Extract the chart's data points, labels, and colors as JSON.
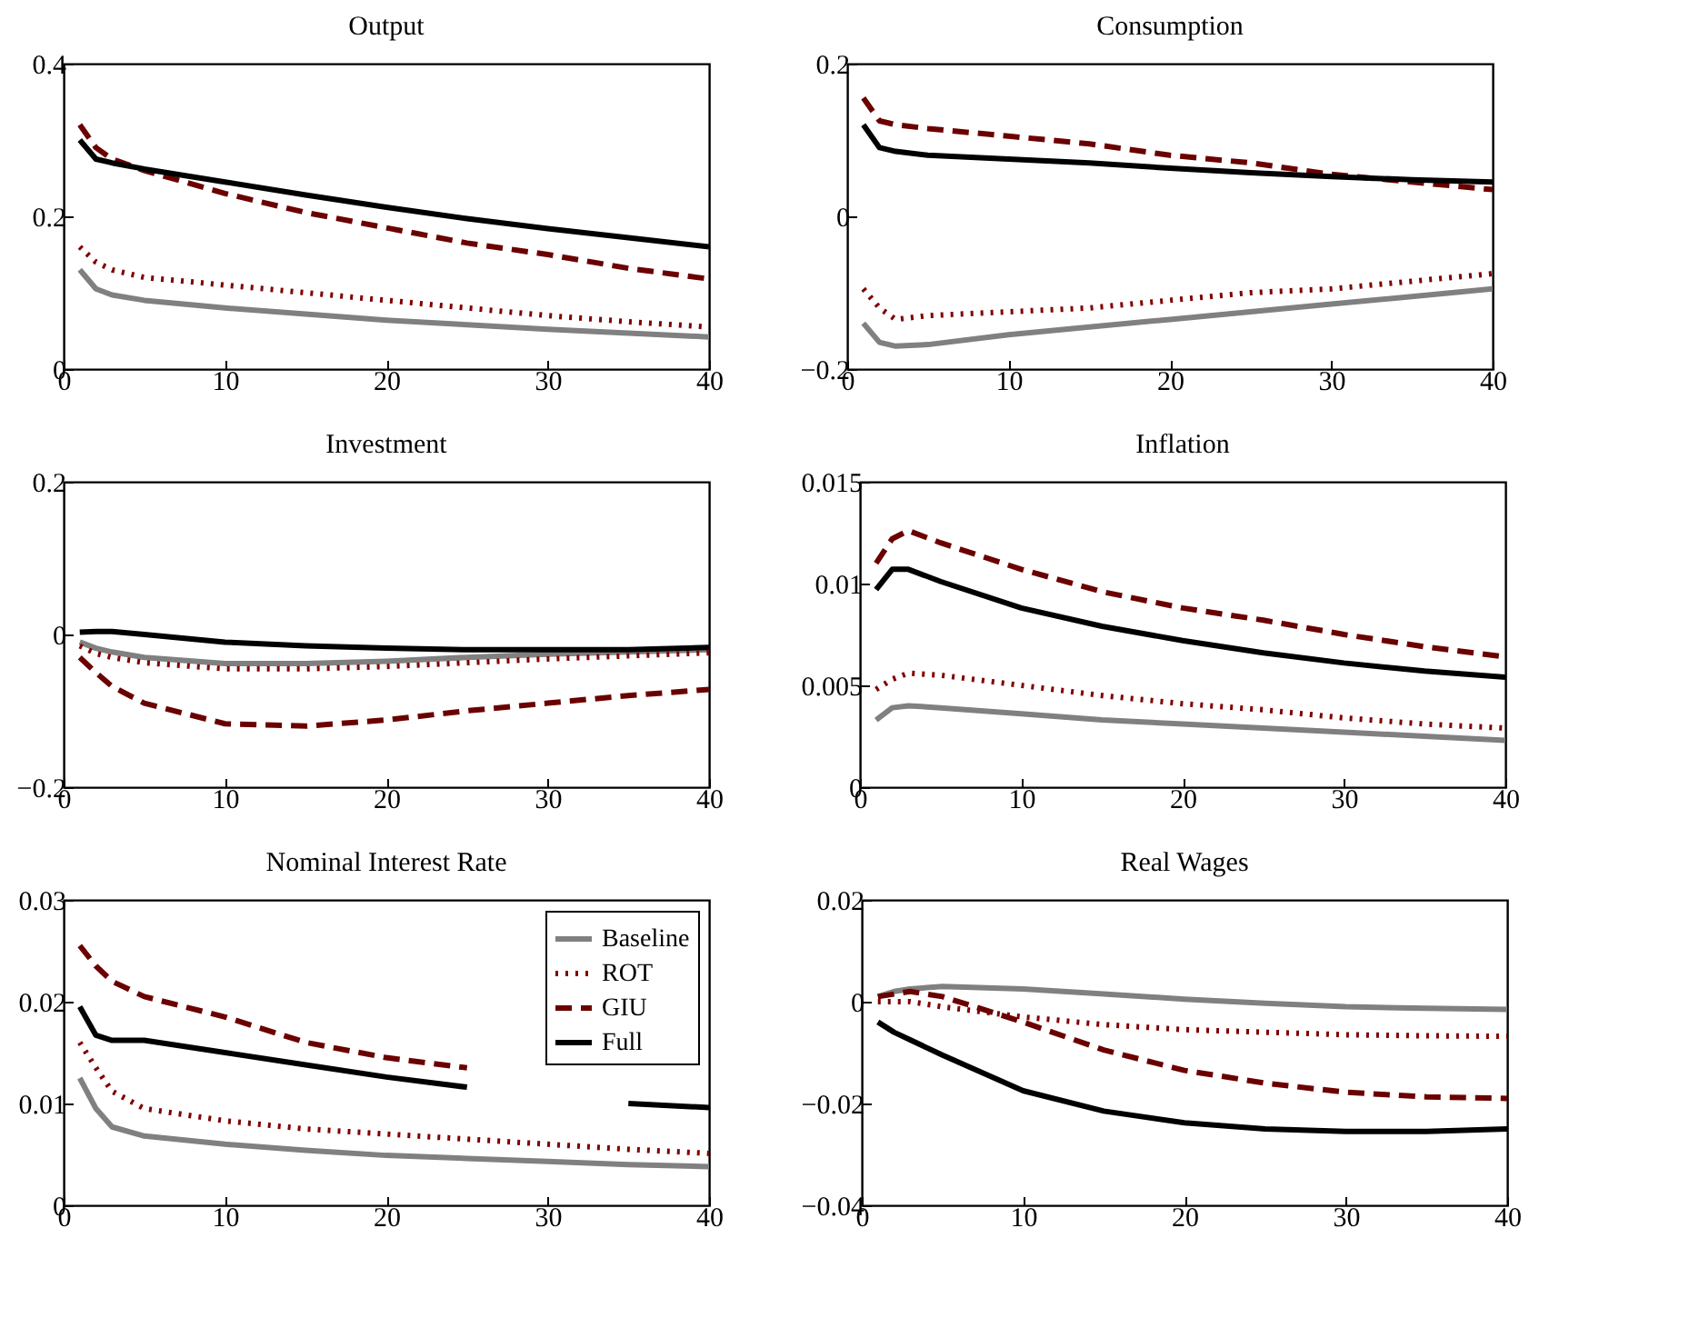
{
  "chart_data": [
    {
      "type": "line",
      "title": "Output",
      "x": [
        1,
        2,
        3,
        5,
        10,
        15,
        20,
        25,
        30,
        35,
        40
      ],
      "xlim": [
        0,
        40
      ],
      "xticks": [
        0,
        10,
        20,
        30,
        40
      ],
      "ylim": [
        0,
        0.4
      ],
      "yticks": [
        0,
        0.2,
        0.4
      ],
      "grid": false,
      "legend": false,
      "series": [
        {
          "color": "#808080",
          "line_style": "solid",
          "values": [
            0.13,
            0.105,
            0.097,
            0.09,
            0.08,
            0.072,
            0.064,
            0.058,
            0.052,
            0.047,
            0.042
          ]
        },
        {
          "color": "#800000",
          "line_style": "dotted",
          "values": [
            0.16,
            0.14,
            0.13,
            0.12,
            0.11,
            0.1,
            0.09,
            0.08,
            0.07,
            0.062,
            0.055
          ]
        },
        {
          "color": "#6b0000",
          "line_style": "dashed",
          "values": [
            0.32,
            0.29,
            0.275,
            0.26,
            0.23,
            0.205,
            0.185,
            0.165,
            0.15,
            0.132,
            0.118
          ]
        },
        {
          "color": "#000000",
          "line_style": "solid",
          "values": [
            0.3,
            0.275,
            0.27,
            0.262,
            0.245,
            0.228,
            0.212,
            0.197,
            0.184,
            0.172,
            0.16
          ]
        }
      ]
    },
    {
      "type": "line",
      "title": "Consumption",
      "x": [
        1,
        2,
        3,
        5,
        10,
        15,
        20,
        25,
        30,
        35,
        40
      ],
      "xlim": [
        0,
        40
      ],
      "xticks": [
        0,
        10,
        20,
        30,
        40
      ],
      "ylim": [
        -0.2,
        0.2
      ],
      "yticks": [
        -0.2,
        0,
        0.2
      ],
      "grid": false,
      "legend": false,
      "series": [
        {
          "color": "#808080",
          "line_style": "solid",
          "values": [
            -0.14,
            -0.165,
            -0.17,
            -0.168,
            -0.155,
            -0.145,
            -0.135,
            -0.125,
            -0.115,
            -0.105,
            -0.095
          ]
        },
        {
          "color": "#800000",
          "line_style": "dotted",
          "values": [
            -0.095,
            -0.12,
            -0.135,
            -0.13,
            -0.125,
            -0.12,
            -0.11,
            -0.1,
            -0.095,
            -0.085,
            -0.075
          ]
        },
        {
          "color": "#6b0000",
          "line_style": "dashed",
          "values": [
            0.155,
            0.125,
            0.12,
            0.115,
            0.105,
            0.095,
            0.08,
            0.07,
            0.055,
            0.045,
            0.035
          ]
        },
        {
          "color": "#000000",
          "line_style": "solid",
          "values": [
            0.12,
            0.09,
            0.085,
            0.08,
            0.075,
            0.07,
            0.063,
            0.057,
            0.052,
            0.048,
            0.045
          ]
        }
      ]
    },
    {
      "type": "line",
      "title": "Investment",
      "x": [
        1,
        2,
        3,
        5,
        10,
        15,
        20,
        25,
        30,
        35,
        40
      ],
      "xlim": [
        0,
        40
      ],
      "xticks": [
        0,
        10,
        20,
        30,
        40
      ],
      "ylim": [
        -0.2,
        0.2
      ],
      "yticks": [
        -0.2,
        0,
        0.2
      ],
      "grid": false,
      "legend": false,
      "series": [
        {
          "color": "#808080",
          "line_style": "solid",
          "values": [
            -0.01,
            -0.018,
            -0.023,
            -0.03,
            -0.038,
            -0.038,
            -0.035,
            -0.03,
            -0.026,
            -0.023,
            -0.02
          ]
        },
        {
          "color": "#800000",
          "line_style": "dotted",
          "values": [
            -0.015,
            -0.025,
            -0.03,
            -0.037,
            -0.045,
            -0.045,
            -0.042,
            -0.037,
            -0.032,
            -0.028,
            -0.024
          ]
        },
        {
          "color": "#6b0000",
          "line_style": "dashed",
          "values": [
            -0.03,
            -0.05,
            -0.068,
            -0.09,
            -0.117,
            -0.12,
            -0.112,
            -0.1,
            -0.09,
            -0.08,
            -0.072
          ]
        },
        {
          "color": "#000000",
          "line_style": "solid",
          "values": [
            0.003,
            0.004,
            0.004,
            0.0,
            -0.01,
            -0.015,
            -0.018,
            -0.02,
            -0.02,
            -0.02,
            -0.017
          ]
        }
      ]
    },
    {
      "type": "line",
      "title": "Inflation",
      "x": [
        1,
        2,
        3,
        5,
        10,
        15,
        20,
        25,
        30,
        35,
        40
      ],
      "xlim": [
        0,
        40
      ],
      "xticks": [
        0,
        10,
        20,
        30,
        40
      ],
      "ylim": [
        0,
        0.015
      ],
      "yticks": [
        0,
        0.005,
        0.01,
        0.015
      ],
      "grid": false,
      "legend": false,
      "series": [
        {
          "color": "#808080",
          "line_style": "solid",
          "values": [
            0.0033,
            0.0039,
            0.004,
            0.0039,
            0.0036,
            0.0033,
            0.0031,
            0.0029,
            0.0027,
            0.0025,
            0.0023
          ]
        },
        {
          "color": "#800000",
          "line_style": "dotted",
          "values": [
            0.0048,
            0.0053,
            0.0056,
            0.0055,
            0.005,
            0.0045,
            0.0041,
            0.0038,
            0.0034,
            0.0031,
            0.0029
          ]
        },
        {
          "color": "#6b0000",
          "line_style": "dashed",
          "values": [
            0.011,
            0.0122,
            0.0126,
            0.012,
            0.0107,
            0.0096,
            0.0088,
            0.0082,
            0.0075,
            0.0069,
            0.0064
          ]
        },
        {
          "color": "#000000",
          "line_style": "solid",
          "values": [
            0.0097,
            0.0107,
            0.0107,
            0.0101,
            0.0088,
            0.0079,
            0.0072,
            0.0066,
            0.0061,
            0.0057,
            0.0054
          ]
        }
      ]
    },
    {
      "type": "line",
      "title": "Nominal Interest Rate",
      "x": [
        1,
        2,
        3,
        5,
        10,
        15,
        20,
        25,
        30,
        35,
        40
      ],
      "xlim": [
        0,
        40
      ],
      "xticks": [
        0,
        10,
        20,
        30,
        40
      ],
      "ylim": [
        0,
        0.03
      ],
      "yticks": [
        0,
        0.01,
        0.02,
        0.03
      ],
      "grid": false,
      "legend": "top right",
      "series": [
        {
          "name": "Baseline",
          "color": "#808080",
          "line_style": "solid",
          "values": [
            0.0125,
            0.0095,
            0.0077,
            0.0068,
            0.006,
            0.0054,
            0.0049,
            0.0046,
            0.0043,
            0.004,
            0.0038
          ]
        },
        {
          "name": "ROT",
          "color": "#800000",
          "line_style": "dotted",
          "values": [
            0.016,
            0.0135,
            0.0112,
            0.0095,
            0.0083,
            0.0075,
            0.007,
            0.0065,
            0.006,
            0.0055,
            0.0051
          ]
        },
        {
          "name": "GIU",
          "color": "#6b0000",
          "line_style": "dashed",
          "values": [
            0.0255,
            0.0235,
            0.022,
            0.0205,
            0.0185,
            0.016,
            0.0145,
            0.0135,
            null,
            null,
            null
          ]
        },
        {
          "name": "Full",
          "color": "#000000",
          "line_style": "solid",
          "values": [
            0.0195,
            0.0167,
            0.0162,
            0.0162,
            0.015,
            0.0138,
            0.0126,
            0.0116,
            null,
            0.01,
            0.0096
          ]
        }
      ]
    },
    {
      "type": "line",
      "title": "Real Wages",
      "x": [
        1,
        2,
        3,
        5,
        10,
        15,
        20,
        25,
        30,
        35,
        40
      ],
      "xlim": [
        0,
        40
      ],
      "xticks": [
        0,
        10,
        20,
        30,
        40
      ],
      "ylim": [
        -0.04,
        0.02
      ],
      "yticks": [
        -0.04,
        -0.02,
        0,
        0.02
      ],
      "grid": false,
      "legend": false,
      "series": [
        {
          "color": "#808080",
          "line_style": "solid",
          "values": [
            0.001,
            0.002,
            0.0025,
            0.003,
            0.0025,
            0.0015,
            0.0005,
            -0.0003,
            -0.001,
            -0.0013,
            -0.0015
          ]
        },
        {
          "color": "#800000",
          "line_style": "dotted",
          "values": [
            0.0,
            0.0,
            0.0,
            -0.001,
            -0.003,
            -0.0045,
            -0.0055,
            -0.006,
            -0.0065,
            -0.0067,
            -0.0068
          ]
        },
        {
          "color": "#6b0000",
          "line_style": "dashed",
          "values": [
            0.001,
            0.0015,
            0.002,
            0.001,
            -0.004,
            -0.0095,
            -0.0135,
            -0.016,
            -0.0178,
            -0.0187,
            -0.019
          ]
        },
        {
          "color": "#000000",
          "line_style": "solid",
          "values": [
            -0.004,
            -0.006,
            -0.0075,
            -0.0105,
            -0.0175,
            -0.0215,
            -0.0238,
            -0.025,
            -0.0255,
            -0.0255,
            -0.025
          ]
        }
      ]
    }
  ]
}
